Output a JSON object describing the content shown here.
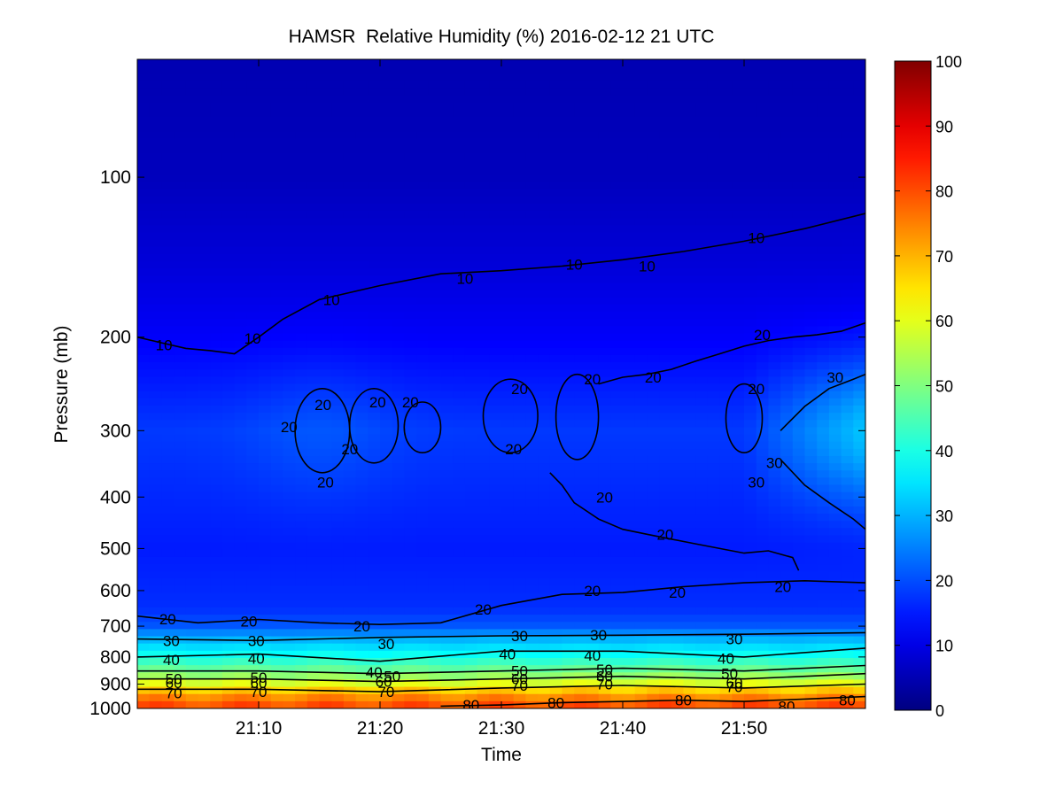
{
  "chart_data": {
    "type": "heatmap",
    "title": "HAMSR  Relative Humidity (%) 2016-02-12 21 UTC",
    "xlabel": "Time",
    "ylabel": "Pressure (mb)",
    "x_tick_labels": [
      "21:10",
      "21:20",
      "21:30",
      "21:40",
      "21:50"
    ],
    "x_tick_minutes": [
      10,
      20,
      30,
      40,
      50
    ],
    "xlim_minutes": [
      0,
      60
    ],
    "y_scale": "log",
    "y_reversed": true,
    "y_tick_labels": [
      "100",
      "200",
      "300",
      "400",
      "500",
      "600",
      "700",
      "800",
      "900",
      "1000"
    ],
    "y_ticks": [
      100,
      200,
      300,
      400,
      500,
      600,
      700,
      800,
      900,
      1000
    ],
    "ylim": [
      60,
      1000
    ],
    "colorbar": {
      "colormap": "jet",
      "range": [
        0,
        100
      ],
      "tick_labels": [
        "0",
        "10",
        "20",
        "30",
        "40",
        "50",
        "60",
        "70",
        "80",
        "90",
        "100"
      ],
      "ticks": [
        0,
        10,
        20,
        30,
        40,
        50,
        60,
        70,
        80,
        90,
        100
      ]
    },
    "contour_levels": [
      10,
      20,
      30,
      40,
      50,
      60,
      70,
      80
    ],
    "field_description_rh": {
      "profile_pressure": [
        60,
        100,
        150,
        200,
        300,
        500,
        650,
        700,
        740,
        790,
        860,
        900,
        940,
        1000
      ],
      "profile_rh": [
        5,
        6,
        9,
        12,
        18,
        15,
        17,
        21,
        30,
        38,
        50,
        60,
        72,
        82
      ]
    },
    "contours": [
      {
        "level": 10,
        "x_minutes": [
          0,
          2,
          4,
          6,
          8,
          10,
          12,
          15,
          20,
          25,
          30,
          35,
          40,
          45,
          50,
          55,
          60
        ],
        "pressure": [
          200,
          205,
          210,
          212,
          215,
          200,
          185,
          170,
          160,
          152,
          150,
          147,
          143,
          138,
          132,
          125,
          117
        ]
      },
      {
        "level": 20,
        "x_minutes": [
          0,
          5,
          10,
          15,
          20,
          25,
          30,
          35,
          40,
          45,
          50,
          55,
          60
        ],
        "pressure": [
          670,
          690,
          680,
          690,
          695,
          690,
          640,
          610,
          605,
          590,
          580,
          575,
          580
        ]
      },
      {
        "level": 20,
        "x_minutes": [
          38,
          40,
          42,
          44,
          46,
          48,
          50,
          52,
          54,
          56,
          58,
          60
        ],
        "pressure": [
          245,
          238,
          235,
          230,
          222,
          215,
          208,
          203,
          200,
          198,
          195,
          188
        ]
      },
      {
        "level": 20,
        "x_minutes": [
          34,
          35,
          36,
          38,
          40,
          42,
          44,
          46,
          48,
          50,
          52,
          54,
          54.5
        ],
        "pressure": [
          360,
          380,
          410,
          440,
          460,
          470,
          480,
          490,
          500,
          510,
          505,
          520,
          550
        ]
      },
      {
        "level": 30,
        "x_minutes": [
          0,
          10,
          20,
          30,
          40,
          50,
          60
        ],
        "pressure": [
          740,
          745,
          735,
          730,
          728,
          725,
          720
        ]
      },
      {
        "level": 30,
        "x_minutes": [
          53,
          55,
          57,
          59,
          60
        ],
        "pressure": [
          300,
          270,
          250,
          240,
          235
        ]
      },
      {
        "level": 30,
        "x_minutes": [
          53,
          55,
          57,
          59,
          60
        ],
        "pressure": [
          340,
          380,
          410,
          440,
          460
        ]
      },
      {
        "level": 40,
        "x_minutes": [
          0,
          10,
          20,
          30,
          40,
          50,
          60
        ],
        "pressure": [
          800,
          790,
          815,
          780,
          780,
          800,
          770
        ]
      },
      {
        "level": 50,
        "x_minutes": [
          0,
          10,
          20,
          30,
          40,
          50,
          60
        ],
        "pressure": [
          850,
          850,
          860,
          850,
          840,
          850,
          830
        ]
      },
      {
        "level": 60,
        "x_minutes": [
          0,
          10,
          20,
          30,
          40,
          50,
          60
        ],
        "pressure": [
          880,
          880,
          890,
          880,
          870,
          880,
          860
        ]
      },
      {
        "level": 70,
        "x_minutes": [
          0,
          10,
          20,
          30,
          40,
          50,
          60
        ],
        "pressure": [
          920,
          920,
          930,
          915,
          905,
          915,
          900
        ]
      },
      {
        "level": 80,
        "x_minutes": [
          25,
          30,
          35,
          40,
          45,
          50,
          55,
          60
        ],
        "pressure": [
          990,
          985,
          975,
          970,
          965,
          970,
          960,
          950
        ]
      }
    ],
    "closed_contours_20": [
      {
        "x_minutes": [
          13,
          17.5
        ],
        "pressure": [
          250,
          360
        ]
      },
      {
        "x_minutes": [
          17.5,
          21.5
        ],
        "pressure": [
          250,
          345
        ]
      },
      {
        "x_minutes": [
          22,
          25
        ],
        "pressure": [
          265,
          330
        ]
      },
      {
        "x_minutes": [
          28.5,
          33
        ],
        "pressure": [
          240,
          330
        ]
      },
      {
        "x_minutes": [
          34.5,
          38
        ],
        "pressure": [
          235,
          340
        ]
      },
      {
        "x_minutes": [
          48.5,
          51.5
        ],
        "pressure": [
          245,
          330
        ]
      }
    ],
    "contour_labels": [
      {
        "text": "10",
        "x_minutes": 2.2,
        "pressure": 207
      },
      {
        "text": "10",
        "x_minutes": 9.5,
        "pressure": 201
      },
      {
        "text": "10",
        "x_minutes": 16,
        "pressure": 170
      },
      {
        "text": "10",
        "x_minutes": 27,
        "pressure": 155
      },
      {
        "text": "10",
        "x_minutes": 36,
        "pressure": 146
      },
      {
        "text": "10",
        "x_minutes": 42,
        "pressure": 147
      },
      {
        "text": "10",
        "x_minutes": 51,
        "pressure": 130
      },
      {
        "text": "20",
        "x_minutes": 2.5,
        "pressure": 678
      },
      {
        "text": "20",
        "x_minutes": 9.2,
        "pressure": 685
      },
      {
        "text": "20",
        "x_minutes": 18.5,
        "pressure": 700
      },
      {
        "text": "20",
        "x_minutes": 28.5,
        "pressure": 650
      },
      {
        "text": "20",
        "x_minutes": 37.5,
        "pressure": 600
      },
      {
        "text": "20",
        "x_minutes": 44.5,
        "pressure": 605
      },
      {
        "text": "20",
        "x_minutes": 53.2,
        "pressure": 590
      },
      {
        "text": "20",
        "x_minutes": 43.5,
        "pressure": 470
      },
      {
        "text": "20",
        "x_minutes": 38.5,
        "pressure": 400
      },
      {
        "text": "20",
        "x_minutes": 51.5,
        "pressure": 198
      },
      {
        "text": "20",
        "x_minutes": 42.5,
        "pressure": 238
      },
      {
        "text": "20",
        "x_minutes": 19.8,
        "pressure": 265
      },
      {
        "text": "20",
        "x_minutes": 22.5,
        "pressure": 265
      },
      {
        "text": "20",
        "x_minutes": 31.5,
        "pressure": 250
      },
      {
        "text": "20",
        "x_minutes": 37.5,
        "pressure": 240
      },
      {
        "text": "20",
        "x_minutes": 51,
        "pressure": 250
      },
      {
        "text": "20",
        "x_minutes": 12.5,
        "pressure": 295
      },
      {
        "text": "20",
        "x_minutes": 15.5,
        "pressure": 375
      },
      {
        "text": "20",
        "x_minutes": 15.3,
        "pressure": 268
      },
      {
        "text": "20",
        "x_minutes": 17.5,
        "pressure": 325
      },
      {
        "text": "20",
        "x_minutes": 31,
        "pressure": 325
      },
      {
        "text": "30",
        "x_minutes": 2.8,
        "pressure": 745
      },
      {
        "text": "30",
        "x_minutes": 9.8,
        "pressure": 745
      },
      {
        "text": "30",
        "x_minutes": 20.5,
        "pressure": 755
      },
      {
        "text": "30",
        "x_minutes": 31.5,
        "pressure": 730
      },
      {
        "text": "30",
        "x_minutes": 38,
        "pressure": 727
      },
      {
        "text": "30",
        "x_minutes": 49.2,
        "pressure": 740
      },
      {
        "text": "30",
        "x_minutes": 57.5,
        "pressure": 238
      },
      {
        "text": "30",
        "x_minutes": 51,
        "pressure": 375
      },
      {
        "text": "30",
        "x_minutes": 52.5,
        "pressure": 345
      },
      {
        "text": "40",
        "x_minutes": 2.8,
        "pressure": 810
      },
      {
        "text": "40",
        "x_minutes": 9.8,
        "pressure": 805
      },
      {
        "text": "40",
        "x_minutes": 19.5,
        "pressure": 855
      },
      {
        "text": "40",
        "x_minutes": 30.5,
        "pressure": 790
      },
      {
        "text": "40",
        "x_minutes": 37.5,
        "pressure": 795
      },
      {
        "text": "40",
        "x_minutes": 48.5,
        "pressure": 805
      },
      {
        "text": "50",
        "x_minutes": 3,
        "pressure": 880
      },
      {
        "text": "50",
        "x_minutes": 10,
        "pressure": 875
      },
      {
        "text": "50",
        "x_minutes": 21,
        "pressure": 870
      },
      {
        "text": "50",
        "x_minutes": 31.5,
        "pressure": 850
      },
      {
        "text": "50",
        "x_minutes": 38.5,
        "pressure": 845
      },
      {
        "text": "50",
        "x_minutes": 48.8,
        "pressure": 860
      },
      {
        "text": "60",
        "x_minutes": 3,
        "pressure": 895
      },
      {
        "text": "60",
        "x_minutes": 10,
        "pressure": 895
      },
      {
        "text": "60",
        "x_minutes": 20.3,
        "pressure": 890
      },
      {
        "text": "60",
        "x_minutes": 31.5,
        "pressure": 880
      },
      {
        "text": "60",
        "x_minutes": 38.5,
        "pressure": 870
      },
      {
        "text": "60",
        "x_minutes": 49.2,
        "pressure": 895
      },
      {
        "text": "70",
        "x_minutes": 3,
        "pressure": 935
      },
      {
        "text": "70",
        "x_minutes": 10,
        "pressure": 930
      },
      {
        "text": "70",
        "x_minutes": 20.5,
        "pressure": 930
      },
      {
        "text": "70",
        "x_minutes": 31.5,
        "pressure": 905
      },
      {
        "text": "70",
        "x_minutes": 38.5,
        "pressure": 900
      },
      {
        "text": "70",
        "x_minutes": 49.2,
        "pressure": 910
      },
      {
        "text": "80",
        "x_minutes": 27.5,
        "pressure": 985
      },
      {
        "text": "80",
        "x_minutes": 34.5,
        "pressure": 975
      },
      {
        "text": "80",
        "x_minutes": 45,
        "pressure": 965
      },
      {
        "text": "80",
        "x_minutes": 53.5,
        "pressure": 990
      },
      {
        "text": "80",
        "x_minutes": 58.5,
        "pressure": 965
      }
    ]
  }
}
